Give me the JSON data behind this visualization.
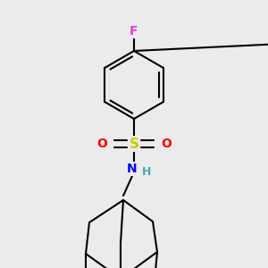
{
  "bg_color": "#ebebeb",
  "atom_colors": {
    "F": "#dd44dd",
    "N": "#0000ff",
    "O": "#ff0000",
    "S": "#cccc00",
    "H": "#44aaaa"
  },
  "bond_color": "#000000",
  "bond_width": 1.5,
  "figsize": [
    3.0,
    3.0
  ],
  "dpi": 100
}
